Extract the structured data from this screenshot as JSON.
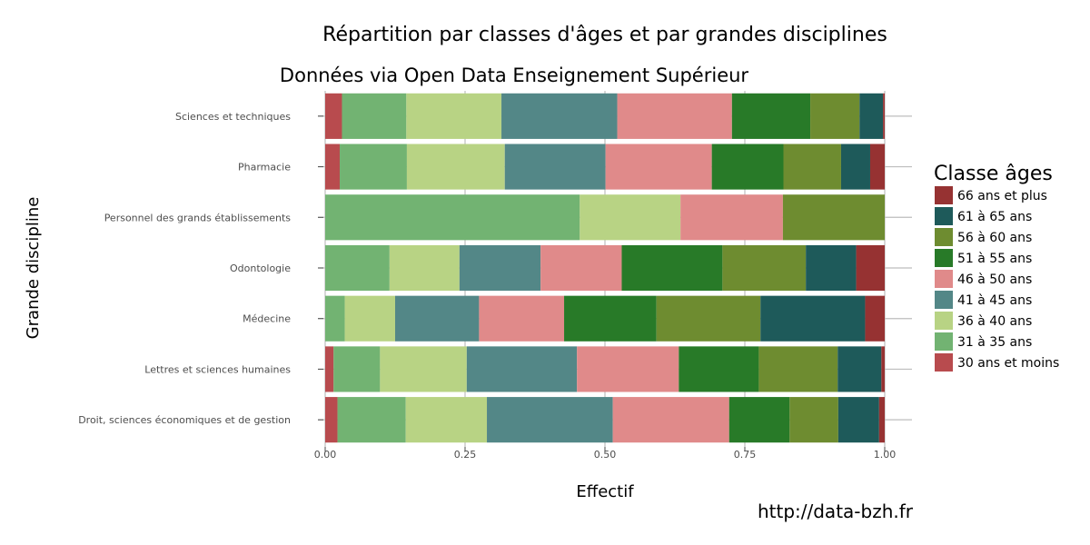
{
  "chart_data": {
    "type": "bar",
    "orientation": "horizontal",
    "stacked": true,
    "title": "Répartition par classes d'âges et par grandes disciplines",
    "subtitle": "Données via Open Data Enseignement Supérieur",
    "xlabel": "Effectif",
    "ylabel": "Grande discipline",
    "xlim": [
      0,
      1
    ],
    "x_ticks": [
      "0.00",
      "0.25",
      "0.50",
      "0.75",
      "1.00"
    ],
    "grid": true,
    "legend": {
      "title": "Classe âges",
      "position": "right"
    },
    "source": "http://data-bzh.fr",
    "categories": [
      "Sciences et techniques",
      "Pharmacie",
      "Personnel des grands établissements",
      "Odontologie",
      "Médecine",
      "Lettres et sciences humaines",
      "Droit, sciences économiques et de gestion"
    ],
    "series": [
      {
        "name": "30 ans et moins",
        "color": "#b84b4e",
        "values": [
          0.03,
          0.026,
          0,
          0,
          0,
          0.015,
          0.022
        ]
      },
      {
        "name": "31 à 35 ans",
        "color": "#72b372",
        "values": [
          0.115,
          0.12,
          0.455,
          0.115,
          0.035,
          0.083,
          0.122
        ]
      },
      {
        "name": "36 à 40 ans",
        "color": "#b8d384",
        "values": [
          0.17,
          0.175,
          0.18,
          0.125,
          0.09,
          0.155,
          0.145
        ]
      },
      {
        "name": "41 à 45 ans",
        "color": "#538787",
        "values": [
          0.207,
          0.18,
          0,
          0.145,
          0.15,
          0.197,
          0.225
        ]
      },
      {
        "name": "46 à 50 ans",
        "color": "#e08a8a",
        "values": [
          0.205,
          0.19,
          0.183,
          0.145,
          0.152,
          0.182,
          0.208
        ]
      },
      {
        "name": "51 à 55 ans",
        "color": "#287a28",
        "values": [
          0.14,
          0.128,
          0,
          0.18,
          0.165,
          0.143,
          0.108
        ]
      },
      {
        "name": "56 à 60 ans",
        "color": "#6e8c30",
        "values": [
          0.088,
          0.103,
          0.182,
          0.149,
          0.186,
          0.141,
          0.087
        ]
      },
      {
        "name": "61 à 65 ans",
        "color": "#1e5a5a",
        "values": [
          0.042,
          0.052,
          0,
          0.09,
          0.187,
          0.078,
          0.073
        ]
      },
      {
        "name": "66 ans et plus",
        "color": "#963232",
        "values": [
          0.003,
          0.026,
          0,
          0.051,
          0.035,
          0.006,
          0.01
        ]
      }
    ]
  }
}
